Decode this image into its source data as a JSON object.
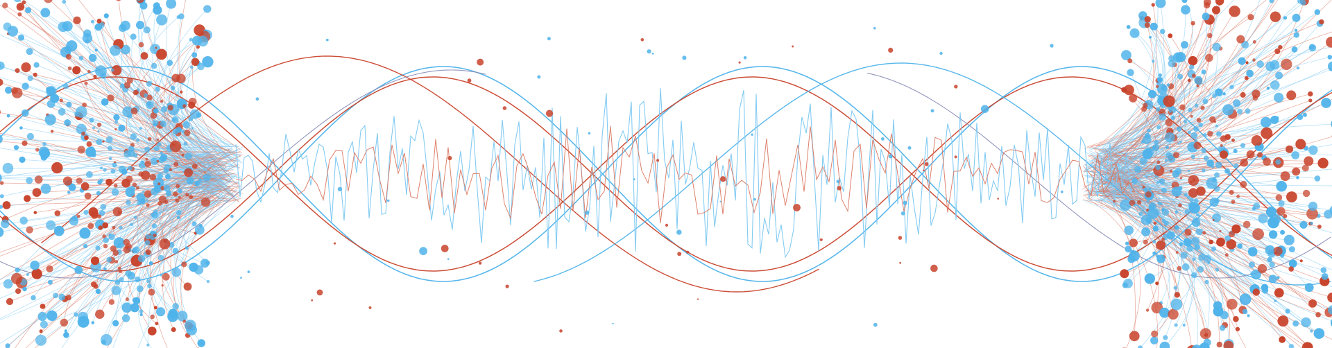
{
  "palette": {
    "background": "#ffffff",
    "blue": "#4fb3ea",
    "blue_light": "#7cc8f2",
    "red": "#c8432b",
    "red_light": "#d9735c",
    "mix": "#8a8fb7"
  },
  "motifs": {
    "double_helix_waves": true,
    "noisy_signal_lines": true,
    "particle_clouds_left_right": true
  }
}
